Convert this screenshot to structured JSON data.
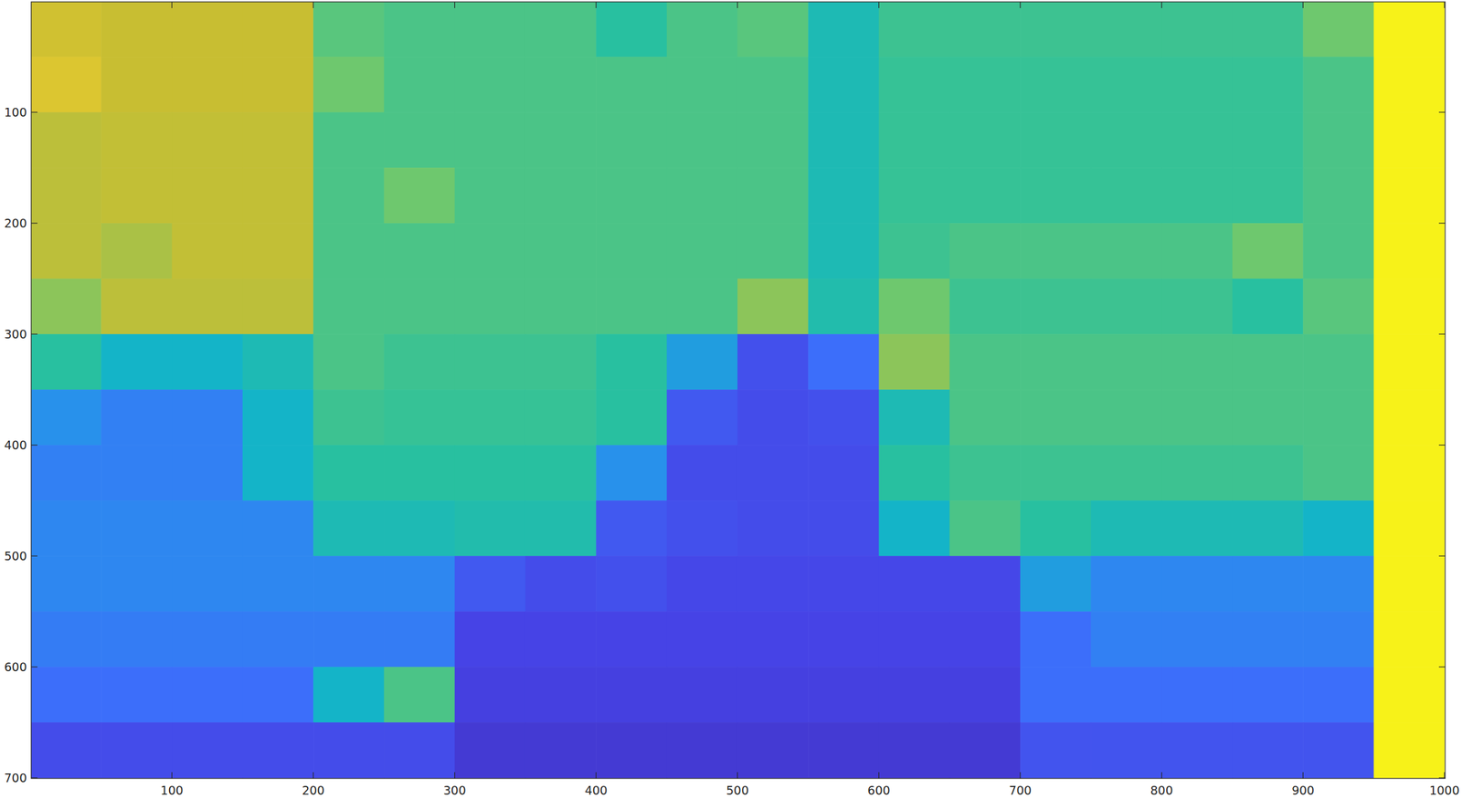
{
  "chart_data": {
    "type": "heatmap",
    "x": [
      25,
      75,
      125,
      175,
      225,
      275,
      325,
      375,
      425,
      475,
      525,
      575,
      625,
      675,
      725,
      775,
      825,
      875,
      925,
      975
    ],
    "y": [
      25,
      75,
      125,
      175,
      225,
      275,
      325,
      375,
      425,
      475,
      525,
      575,
      625,
      675
    ],
    "cells": [
      [
        0.82,
        0.8,
        0.8,
        0.8,
        0.62,
        0.6,
        0.6,
        0.6,
        0.55,
        0.6,
        0.62,
        0.5,
        0.58,
        0.58,
        0.58,
        0.58,
        0.58,
        0.58,
        0.65,
        0.98
      ],
      [
        0.85,
        0.8,
        0.8,
        0.8,
        0.65,
        0.6,
        0.6,
        0.6,
        0.6,
        0.6,
        0.6,
        0.5,
        0.57,
        0.57,
        0.57,
        0.57,
        0.57,
        0.57,
        0.6,
        0.98
      ],
      [
        0.78,
        0.79,
        0.79,
        0.79,
        0.6,
        0.6,
        0.6,
        0.6,
        0.6,
        0.6,
        0.6,
        0.5,
        0.57,
        0.57,
        0.57,
        0.57,
        0.57,
        0.57,
        0.6,
        0.98
      ],
      [
        0.78,
        0.79,
        0.79,
        0.79,
        0.6,
        0.65,
        0.6,
        0.6,
        0.6,
        0.6,
        0.6,
        0.5,
        0.57,
        0.57,
        0.57,
        0.57,
        0.57,
        0.57,
        0.6,
        0.98
      ],
      [
        0.78,
        0.75,
        0.79,
        0.79,
        0.6,
        0.6,
        0.6,
        0.6,
        0.6,
        0.6,
        0.6,
        0.5,
        0.58,
        0.6,
        0.6,
        0.6,
        0.6,
        0.65,
        0.6,
        0.98
      ],
      [
        0.7,
        0.78,
        0.78,
        0.78,
        0.6,
        0.6,
        0.6,
        0.6,
        0.6,
        0.6,
        0.7,
        0.52,
        0.65,
        0.58,
        0.58,
        0.58,
        0.58,
        0.55,
        0.62,
        0.98
      ],
      [
        0.55,
        0.45,
        0.45,
        0.5,
        0.6,
        0.58,
        0.58,
        0.58,
        0.55,
        0.35,
        0.13,
        0.2,
        0.7,
        0.6,
        0.6,
        0.6,
        0.6,
        0.6,
        0.6,
        0.98
      ],
      [
        0.3,
        0.25,
        0.25,
        0.45,
        0.58,
        0.57,
        0.57,
        0.57,
        0.55,
        0.15,
        0.12,
        0.13,
        0.5,
        0.6,
        0.6,
        0.6,
        0.6,
        0.6,
        0.6,
        0.98
      ],
      [
        0.25,
        0.25,
        0.25,
        0.45,
        0.55,
        0.55,
        0.55,
        0.55,
        0.3,
        0.12,
        0.12,
        0.12,
        0.55,
        0.58,
        0.58,
        0.58,
        0.58,
        0.58,
        0.6,
        0.98
      ],
      [
        0.27,
        0.27,
        0.27,
        0.27,
        0.5,
        0.5,
        0.52,
        0.52,
        0.15,
        0.13,
        0.12,
        0.12,
        0.45,
        0.6,
        0.55,
        0.5,
        0.5,
        0.5,
        0.45,
        0.98
      ],
      [
        0.27,
        0.27,
        0.27,
        0.27,
        0.27,
        0.27,
        0.15,
        0.12,
        0.13,
        0.11,
        0.11,
        0.11,
        0.11,
        0.11,
        0.35,
        0.27,
        0.27,
        0.27,
        0.27,
        0.98
      ],
      [
        0.24,
        0.24,
        0.24,
        0.24,
        0.24,
        0.24,
        0.1,
        0.1,
        0.1,
        0.1,
        0.1,
        0.1,
        0.1,
        0.1,
        0.2,
        0.25,
        0.25,
        0.25,
        0.25,
        0.98
      ],
      [
        0.2,
        0.2,
        0.2,
        0.2,
        0.45,
        0.6,
        0.09,
        0.09,
        0.09,
        0.09,
        0.09,
        0.09,
        0.09,
        0.09,
        0.2,
        0.2,
        0.2,
        0.2,
        0.2,
        0.98
      ],
      [
        0.12,
        0.12,
        0.12,
        0.12,
        0.12,
        0.12,
        0.07,
        0.07,
        0.07,
        0.07,
        0.07,
        0.07,
        0.07,
        0.07,
        0.14,
        0.14,
        0.14,
        0.14,
        0.14,
        0.98
      ]
    ],
    "clim": [
      0,
      1
    ],
    "xlim": [
      0.5,
      1000.5
    ],
    "ylim": [
      0.5,
      700.5
    ],
    "xticks": [
      100,
      200,
      300,
      400,
      500,
      600,
      700,
      800,
      900,
      1000
    ],
    "yticks": [
      100,
      200,
      300,
      400,
      500,
      600,
      700
    ]
  }
}
